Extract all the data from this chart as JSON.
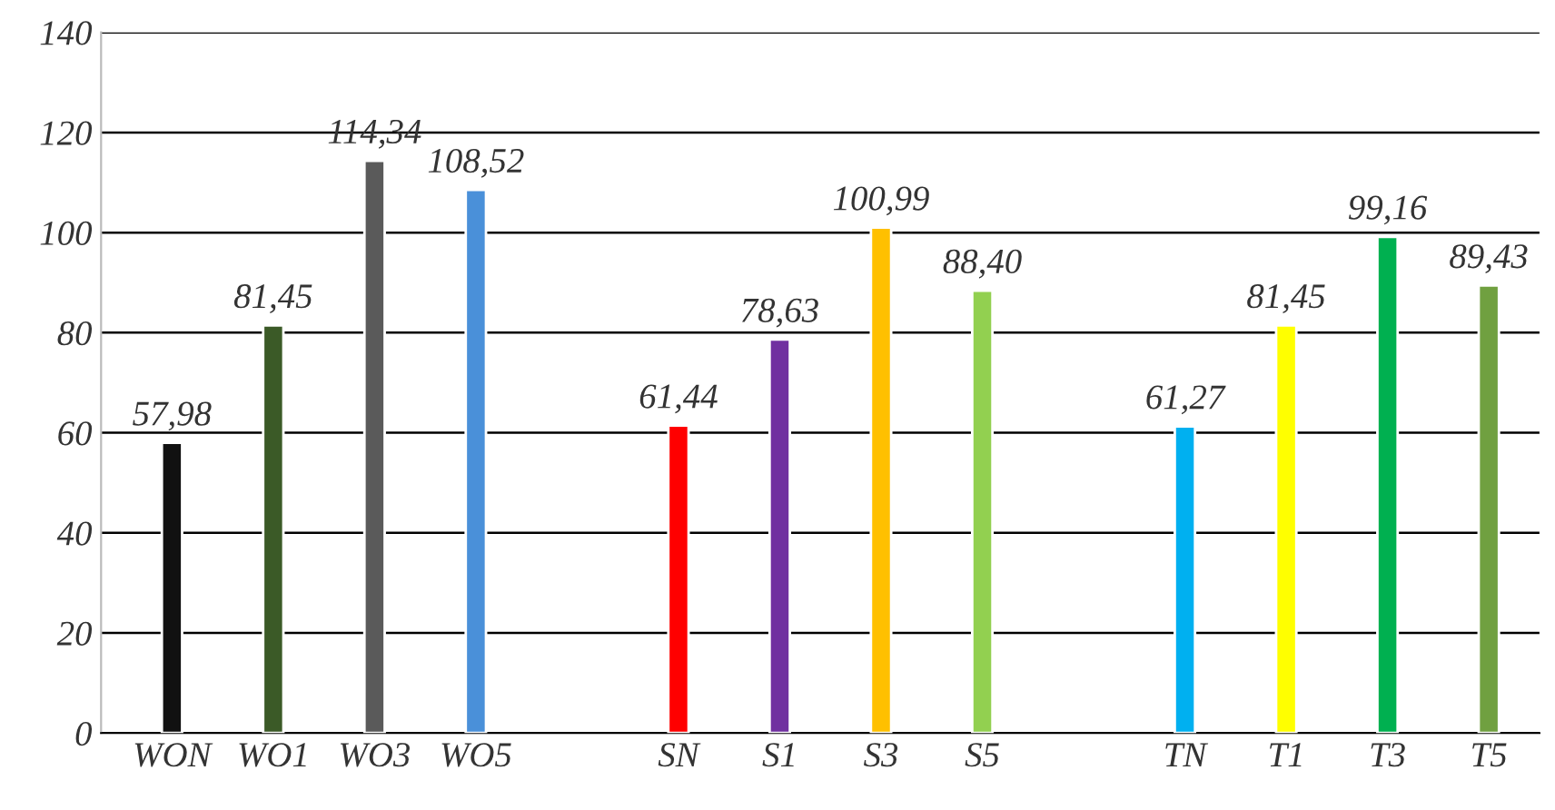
{
  "chart_data": {
    "type": "bar",
    "categories": [
      "WON",
      "WO1",
      "WO3",
      "WO5",
      null,
      "SN",
      "S1",
      "S3",
      "S5",
      null,
      "TN",
      "T1",
      "T3",
      "T5"
    ],
    "values": [
      57.98,
      81.45,
      114.34,
      108.52,
      null,
      61.44,
      78.63,
      100.99,
      88.4,
      null,
      61.27,
      81.45,
      99.16,
      89.43
    ],
    "value_labels": [
      "57,98",
      "81,45",
      "114,34",
      "108,52",
      null,
      "61,44",
      "78,63",
      "100,99",
      "88,40",
      null,
      "61,27",
      "81,45",
      "99,16",
      "89,43"
    ],
    "colors": [
      "#111111",
      "#3b5a27",
      "#5a5a5a",
      "#4a90d9",
      null,
      "#ff0000",
      "#7030a0",
      "#ffc000",
      "#92d050",
      null,
      "#00b0f0",
      "#ffff00",
      "#00b050",
      "#70a040"
    ],
    "ylim": [
      0,
      140
    ],
    "yticks": [
      0,
      20,
      40,
      60,
      80,
      100,
      120,
      140
    ],
    "grid": "y",
    "legend": false
  }
}
